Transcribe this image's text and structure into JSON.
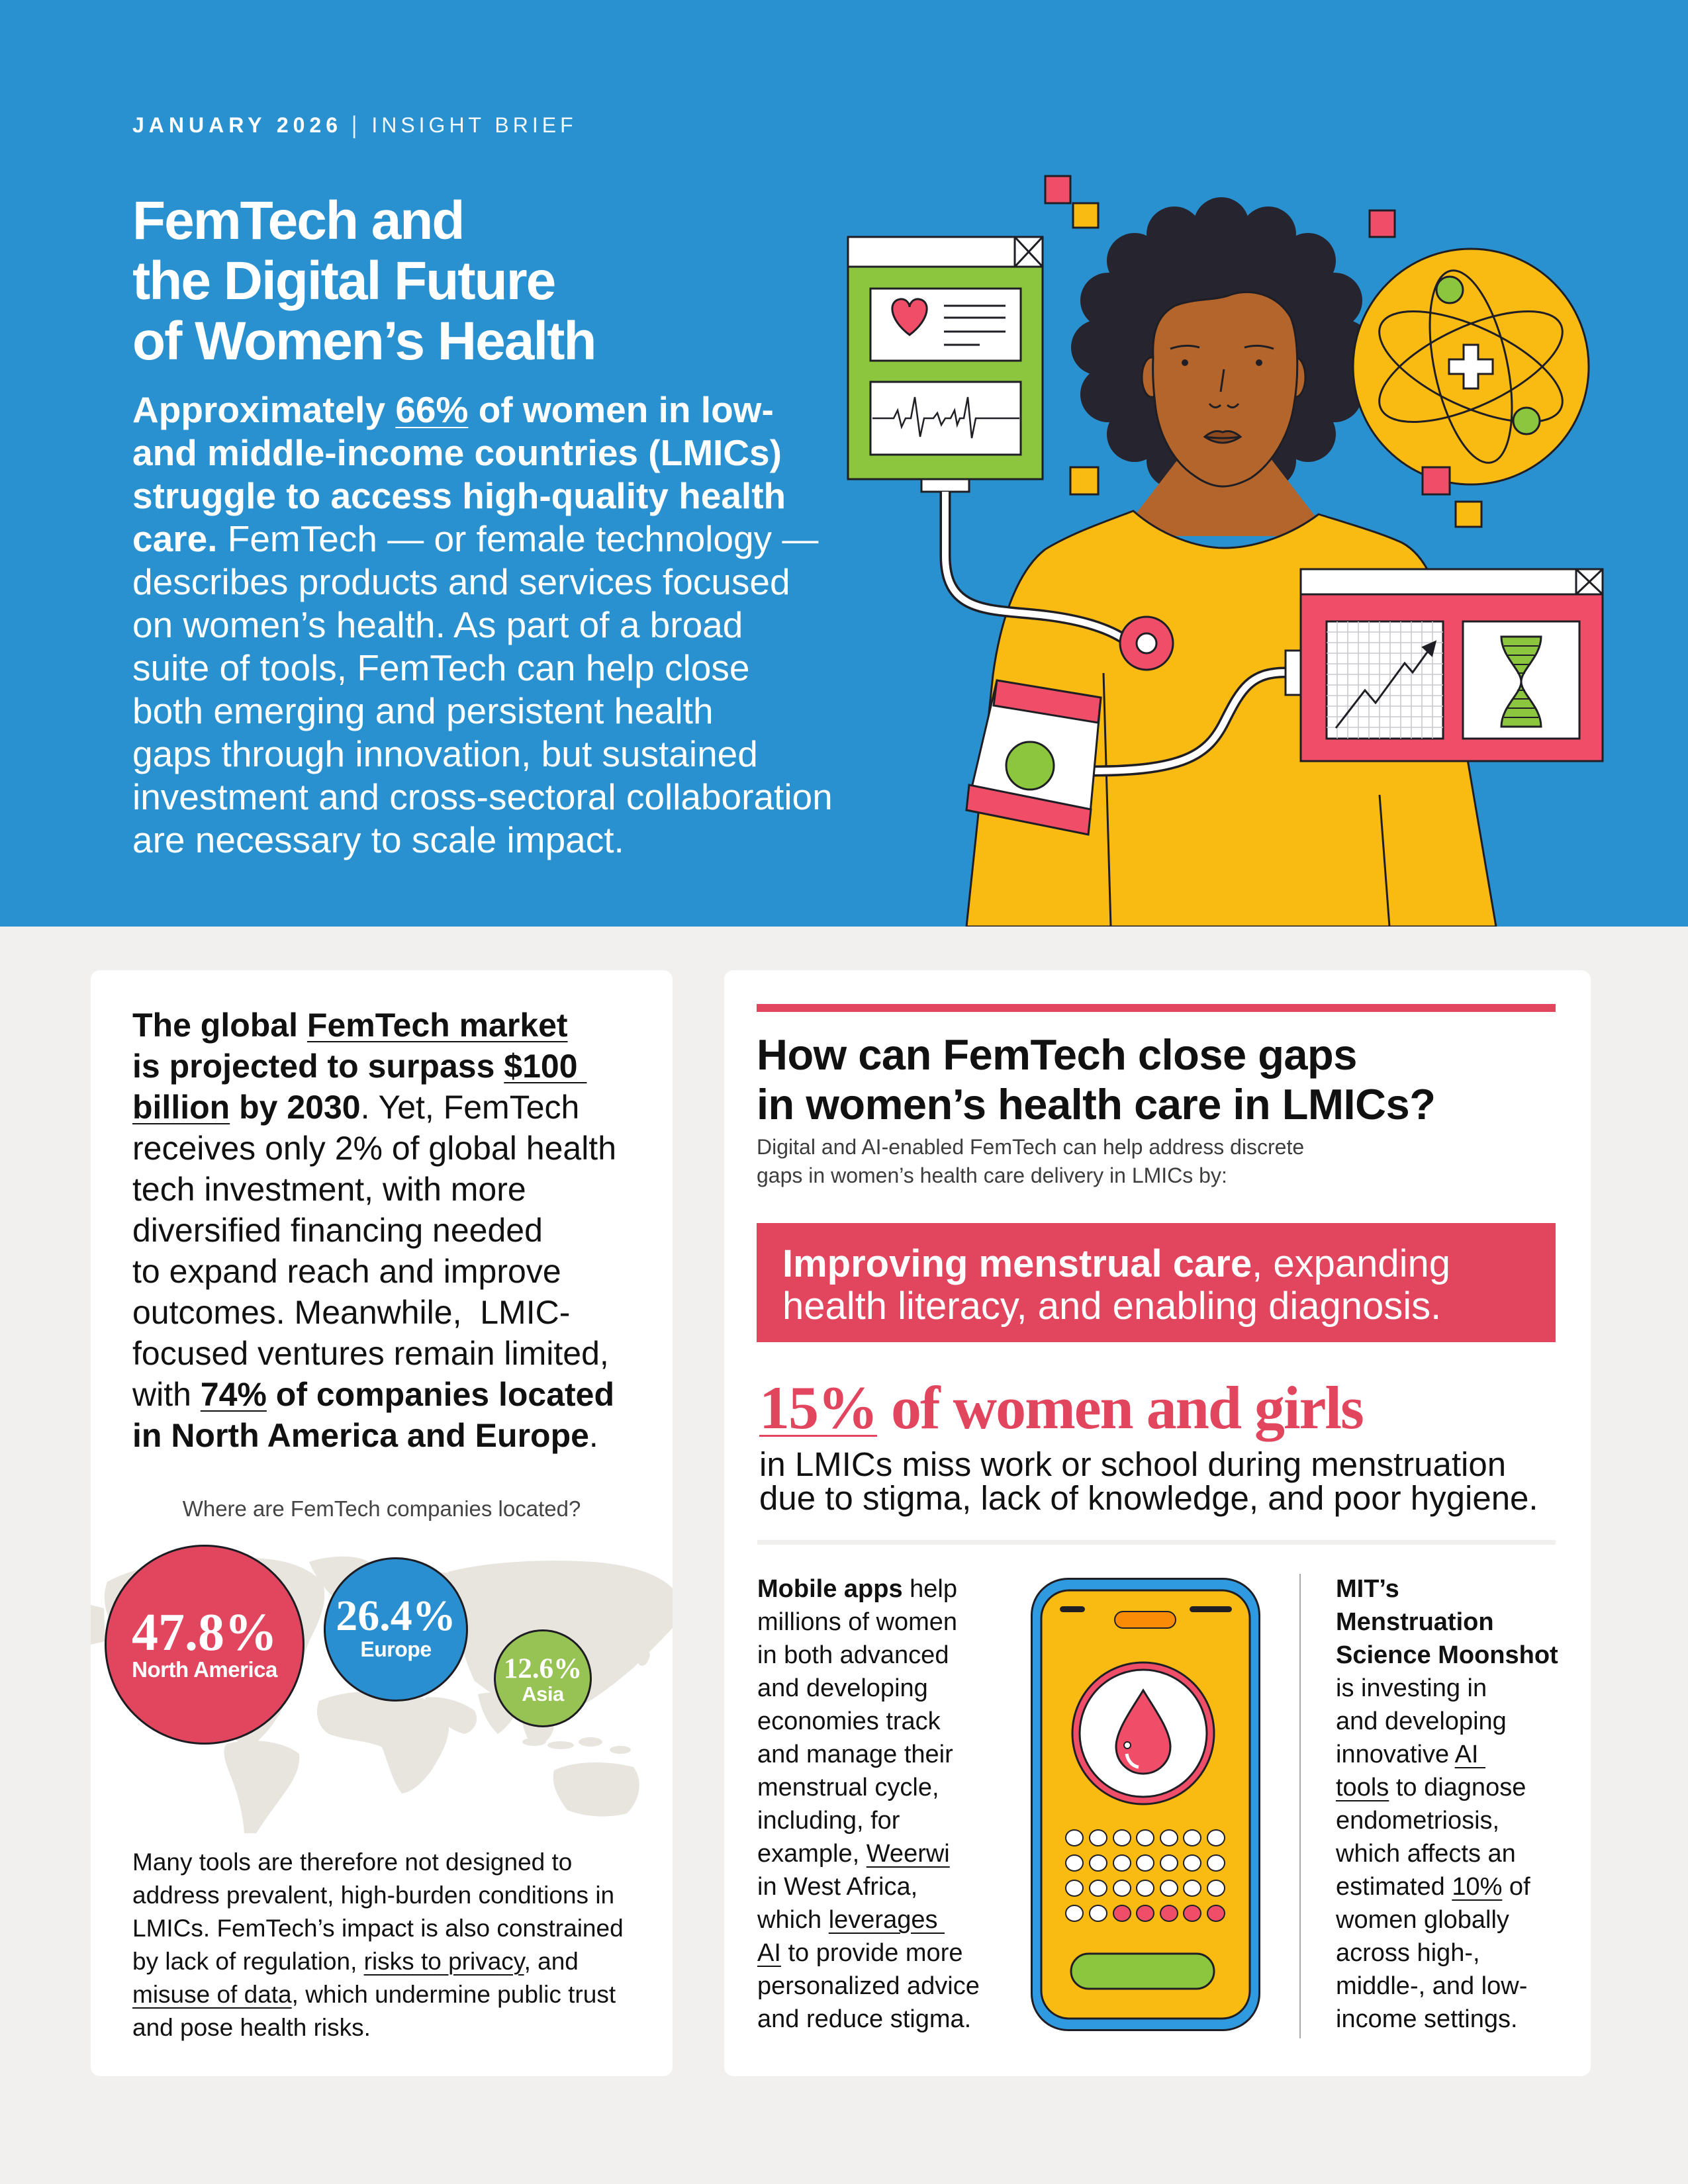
{
  "colors": {
    "hero_blue": "#2A91D0",
    "page_background": "#F1F0EE",
    "accent_red": "#E1465E",
    "europe_blue": "#2A8FD0",
    "asia_green": "#97C355",
    "illustration_yellow": "#F9BB12",
    "illustration_green": "#8CC63E",
    "illustration_red": "#F04D69"
  },
  "hero": {
    "date": "JANUARY 2026",
    "separator": "|",
    "brief_type": "INSIGHT BRIEF",
    "title_lines": [
      "FemTech and",
      "the Digital Future",
      "of Women’s Health"
    ],
    "intro_lines": [
      [
        {
          "text": "Approximately ",
          "bold": true
        },
        {
          "text": "66%",
          "bold": true,
          "link": true
        },
        {
          "text": " of women in low-",
          "bold": true
        }
      ],
      [
        {
          "text": "and middle-income countries (LMICs)",
          "bold": true
        }
      ],
      [
        {
          "text": "struggle to access high-quality health",
          "bold": true
        }
      ],
      [
        {
          "text": "care.",
          "bold": true
        },
        {
          "text": " FemTech — or female technology —"
        }
      ],
      [
        {
          "text": "describes products and services focused"
        }
      ],
      [
        {
          "text": "on women’s health. As part of a broad"
        }
      ],
      [
        {
          "text": "suite of tools, FemTech can help close"
        }
      ],
      [
        {
          "text": "both emerging and persistent health"
        }
      ],
      [
        {
          "text": "gaps through innovation, but sustained"
        }
      ],
      [
        {
          "text": "investment and cross-sectoral collaboration"
        }
      ],
      [
        {
          "text": "are necessary to scale impact."
        }
      ]
    ],
    "illustration": {
      "subject": "woman connected to digital health devices",
      "icons": [
        "health-app-window-icon",
        "heart-icon",
        "ecg-waveform-icon",
        "atom-medical-cross-icon",
        "analytics-chart-window-icon",
        "dna-icon",
        "blood-pressure-cuff-icon",
        "sensor-pad-icon"
      ]
    }
  },
  "left_card": {
    "lead_lines": [
      [
        {
          "text": "The global ",
          "bold": true
        },
        {
          "text": "FemTech market",
          "bold": true,
          "link": true
        }
      ],
      [
        {
          "text": "is projected to surpass ",
          "bold": true
        },
        {
          "text": "$100 ",
          "bold": true,
          "link": true
        }
      ],
      [
        {
          "text": "billion",
          "bold": true,
          "link": true
        },
        {
          "text": " by 2030",
          "bold": true
        },
        {
          "text": ". Yet, FemTech"
        }
      ],
      [
        {
          "text": "receives only 2% of global health"
        }
      ],
      [
        {
          "text": "tech investment, with more"
        }
      ],
      [
        {
          "text": "diversified financing needed"
        }
      ],
      [
        {
          "text": "to expand reach and improve"
        }
      ],
      [
        {
          "text": "outcomes. Meanwhile,  LMIC-"
        }
      ],
      [
        {
          "text": "focused ventures remain limited,"
        }
      ],
      [
        {
          "text": "with "
        },
        {
          "text": "74%",
          "bold": true,
          "link": true
        },
        {
          "text": " of companies located",
          "bold": true
        }
      ],
      [
        {
          "text": "in North America and Europe",
          "bold": true
        },
        {
          "text": "."
        }
      ]
    ],
    "location_chart": {
      "title": "Where are FemTech companies located?",
      "bubbles": [
        {
          "region": "North America",
          "percent": 47.8,
          "display": "47.8%",
          "color": "#E1465E"
        },
        {
          "region": "Europe",
          "percent": 26.4,
          "display": "26.4%",
          "color": "#2A8FD0"
        },
        {
          "region": "Asia",
          "percent": 12.6,
          "display": "12.6%",
          "color": "#97C355"
        }
      ]
    },
    "closing_lines": [
      [
        {
          "text": "Many tools are therefore not designed to"
        }
      ],
      [
        {
          "text": "address prevalent, high-burden conditions in"
        }
      ],
      [
        {
          "text": "LMICs. FemTech’s impact is also constrained"
        }
      ],
      [
        {
          "text": "by lack of regulation, "
        },
        {
          "text": "risks to privacy",
          "link": true
        },
        {
          "text": ", and"
        }
      ],
      [
        {
          "text": "misuse of data",
          "link": true
        },
        {
          "text": ", which undermine public trust"
        }
      ],
      [
        {
          "text": "and pose health risks."
        }
      ]
    ]
  },
  "right_card": {
    "heading_lines": [
      "How can FemTech close gaps",
      "in women’s health care in LMICs?"
    ],
    "subtitle_lines": [
      "Digital and AI-enabled FemTech can help address discrete",
      "gaps in women’s health care delivery in LMICs by:"
    ],
    "highlight_lines": [
      [
        {
          "text": "Improving menstrual care",
          "bold": true
        },
        {
          "text": ", expanding"
        }
      ],
      [
        {
          "text": "health literacy, and enabling diagnosis."
        }
      ]
    ],
    "stat_lines": [
      [
        {
          "text": "15%",
          "link": true
        },
        {
          "text": " of women and girls"
        }
      ]
    ],
    "stat_description_lines": [
      [
        {
          "text": "in LMICs miss work or school during menstruation"
        }
      ],
      [
        {
          "text": "due to stigma, lack of knowledge, and poor hygiene."
        }
      ]
    ],
    "mobile_apps_lines": [
      [
        {
          "text": "Mobile apps",
          "bold": true
        },
        {
          "text": " help"
        }
      ],
      [
        {
          "text": "millions of women"
        }
      ],
      [
        {
          "text": "in both advanced"
        }
      ],
      [
        {
          "text": "and developing"
        }
      ],
      [
        {
          "text": "economies track"
        }
      ],
      [
        {
          "text": "and manage their"
        }
      ],
      [
        {
          "text": "menstrual cycle,"
        }
      ],
      [
        {
          "text": "including, for"
        }
      ],
      [
        {
          "text": "example, "
        },
        {
          "text": "Weerwi",
          "link": true
        }
      ],
      [
        {
          "text": "in West Africa,"
        }
      ],
      [
        {
          "text": "which "
        },
        {
          "text": "leverages ",
          "link": true
        }
      ],
      [
        {
          "text": "AI",
          "link": true
        },
        {
          "text": " to provide more"
        }
      ],
      [
        {
          "text": "personalized advice"
        }
      ],
      [
        {
          "text": "and reduce stigma."
        }
      ]
    ],
    "mit_lines": [
      [
        {
          "text": "MIT’s",
          "bold": true
        }
      ],
      [
        {
          "text": "Menstruation",
          "bold": true
        }
      ],
      [
        {
          "text": "Science Moonshot",
          "bold": true
        }
      ],
      [
        {
          "text": "is investing in"
        }
      ],
      [
        {
          "text": "and developing"
        }
      ],
      [
        {
          "text": "innovative "
        },
        {
          "text": "AI ",
          "link": true
        }
      ],
      [
        {
          "text": "tools",
          "link": true
        },
        {
          "text": " to diagnose"
        }
      ],
      [
        {
          "text": "endometriosis,"
        }
      ],
      [
        {
          "text": "which affects an"
        }
      ],
      [
        {
          "text": "estimated "
        },
        {
          "text": "10%",
          "link": true
        },
        {
          "text": " of"
        }
      ],
      [
        {
          "text": "women globally"
        }
      ],
      [
        {
          "text": "across high-,"
        }
      ],
      [
        {
          "text": "middle-, and low-"
        }
      ],
      [
        {
          "text": "income settings."
        }
      ]
    ],
    "phone_illustration": {
      "icon": "blood-drop-icon",
      "calendar_rows": 4,
      "calendar_cols": 7,
      "highlighted_days": 5
    }
  }
}
